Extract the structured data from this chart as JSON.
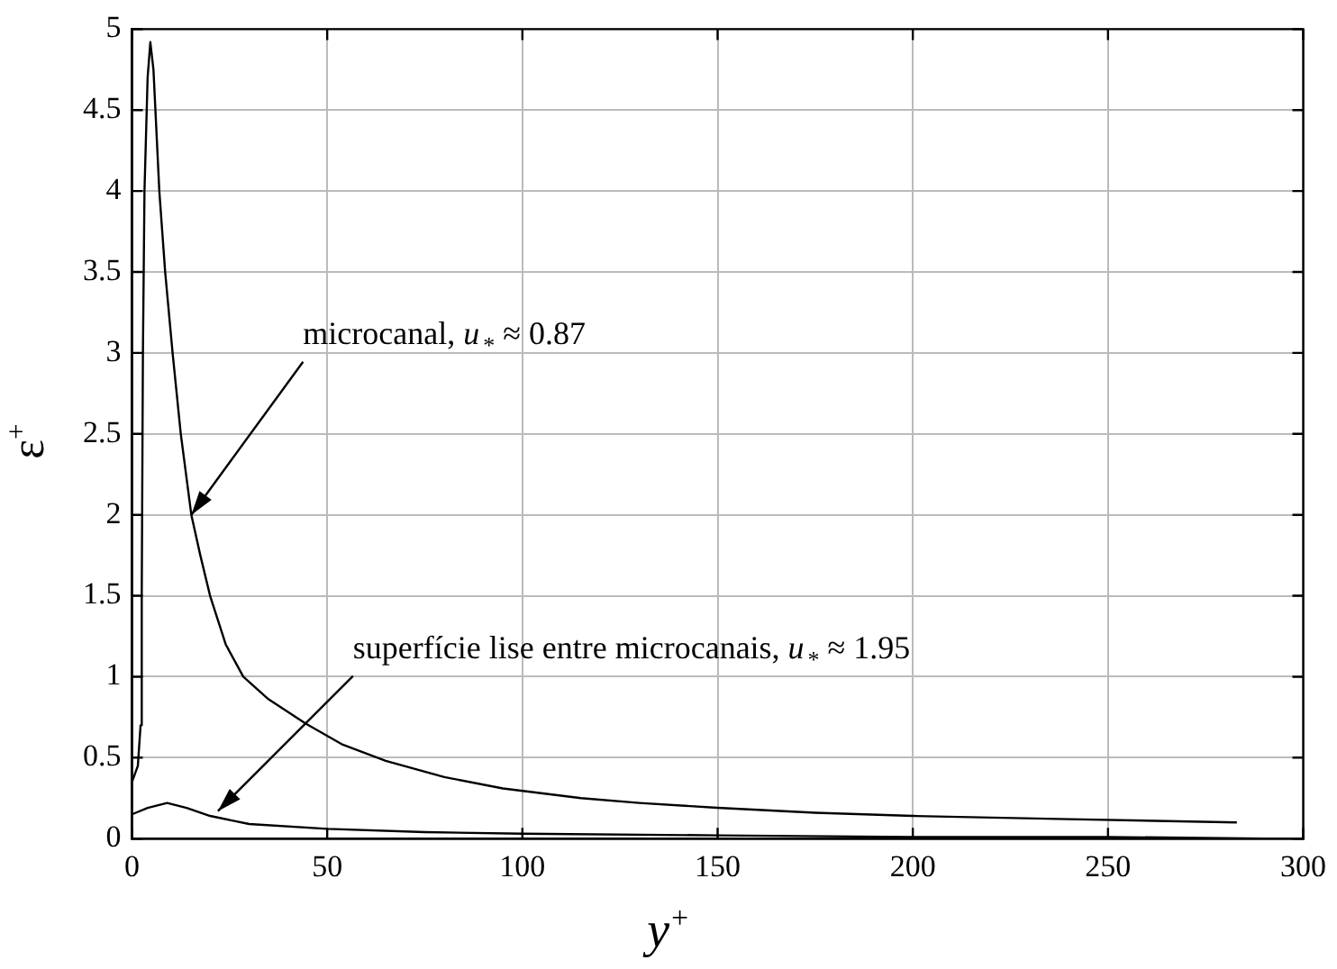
{
  "chart_data": {
    "type": "line",
    "xlabel": "y$^{+}$",
    "ylabel": "ε$^{+}$",
    "series": [
      {
        "color": "#000000",
        "x": [
          0,
          1.5,
          2.2,
          2.5,
          2.8,
          3.2,
          4,
          4.7,
          5.5,
          7,
          8.5,
          10.4,
          12.5,
          15.2,
          17.5,
          20,
          24,
          28.5,
          35,
          44.5,
          54,
          65,
          80,
          95,
          115,
          130,
          150,
          175,
          200,
          240,
          283
        ],
        "values": [
          0.35,
          0.45,
          0.7,
          1.5,
          3,
          4,
          4.7,
          4.92,
          4.75,
          4,
          3.5,
          3,
          2.5,
          2,
          1.75,
          1.5,
          1.2,
          1,
          0.86,
          0.71,
          0.58,
          0.48,
          0.38,
          0.31,
          0.25,
          0.22,
          0.19,
          0.16,
          0.14,
          0.12,
          0.1
        ]
      },
      {
        "color": "#000000",
        "x": [
          0,
          4,
          9,
          14,
          20,
          30,
          50,
          75,
          100,
          150,
          200,
          250,
          290
        ],
        "values": [
          0.15,
          0.19,
          0.22,
          0.19,
          0.14,
          0.09,
          0.06,
          0.04,
          0.03,
          0.02,
          0.01,
          0.01,
          0
        ]
      }
    ],
    "xlim": [
      0,
      300
    ],
    "xticks": [
      0,
      50,
      100,
      150,
      200,
      250,
      300
    ],
    "ylim": [
      0,
      5
    ],
    "yticks": [
      0,
      0.5,
      1,
      1.5,
      2,
      2.5,
      3,
      3.5,
      4,
      4.5,
      5
    ],
    "grid": true,
    "marker": "none",
    "line_style": "solid",
    "annotations": [
      {
        "text": "microcanal, u$_{*}$ ≈ 0.87",
        "x": 15.2,
        "y": 2
      },
      {
        "text": "superfície lise entre microcanais, u$_{*}$ ≈ 1.95",
        "x": 22,
        "y": 0.17
      }
    ]
  }
}
